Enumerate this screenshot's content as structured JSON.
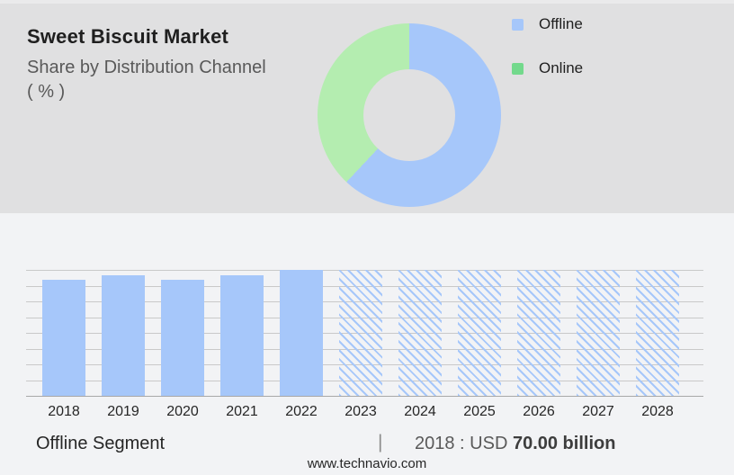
{
  "header": {
    "title": "Sweet Biscuit Market",
    "subtitle_line1": "Share by Distribution Channel",
    "subtitle_line2": "( % )"
  },
  "legend": {
    "items": [
      {
        "label": "Offline",
        "color": "#a6c7fa"
      },
      {
        "label": "Online",
        "color": "#73d98c"
      }
    ]
  },
  "footer": {
    "segment_label": "Offline Segment",
    "separator": "|",
    "value_prefix": "2018 : USD ",
    "value_bold": "70.00 billion",
    "website": "www.technavio.com"
  },
  "colors": {
    "top_panel_bg": "#e0e0e1",
    "bottom_panel_bg": "#f2f3f5",
    "offline_blue": "#a6c7fa",
    "online_green_donut": "#b4edb0",
    "online_green_legend": "#73d98c",
    "gridline": "#c9c9c9",
    "baseline": "#a8a8a8"
  },
  "chart_data": [
    {
      "type": "pie",
      "variant": "donut",
      "title": "Sweet Biscuit Market Share by Distribution Channel (%)",
      "labels": [
        "Offline",
        "Online"
      ],
      "values": [
        62,
        38
      ],
      "values_note": "no numeric labels shown; estimated from arc angles",
      "colors": [
        "#a6c7fa",
        "#b4edb0"
      ],
      "start_angle_deg": 0,
      "clockwise": true,
      "legend_position": "right"
    },
    {
      "type": "bar",
      "categories": [
        "2018",
        "2019",
        "2020",
        "2021",
        "2022",
        "2023",
        "2024",
        "2025",
        "2026",
        "2027",
        "2028"
      ],
      "values": [
        70,
        73,
        70,
        73,
        76,
        76,
        76,
        76,
        76,
        76,
        76
      ],
      "values_note": "only 2018 labeled on image (USD 70.00 billion); remaining values estimated from bar heights vs gridlines",
      "unit": "USD billion",
      "forecast_categories": [
        "2023",
        "2024",
        "2025",
        "2026",
        "2027",
        "2028"
      ],
      "forecast_style": "diagonal-hatch",
      "ylim": [
        0,
        76
      ],
      "gridline_count": 9,
      "grid": true,
      "xlabel": "",
      "ylabel": "",
      "legend_position": "none"
    }
  ]
}
